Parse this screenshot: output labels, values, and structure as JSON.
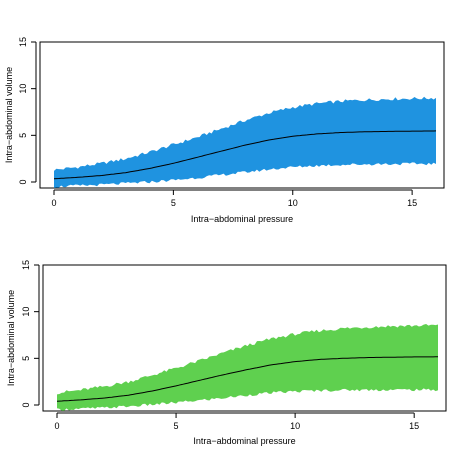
{
  "chart_data": [
    {
      "type": "area",
      "xlabel": "Intra−abdominal pressure",
      "ylabel": "Intra−abdominal volume",
      "xlim": [
        0,
        16
      ],
      "ylim": [
        0,
        15
      ],
      "xticks": [
        0,
        5,
        10,
        15
      ],
      "yticks": [
        0,
        5,
        10,
        15
      ],
      "grid": false,
      "band_color": "#1f93e0",
      "line_color": "#000000",
      "x": [
        0.0,
        1.0,
        2.0,
        3.0,
        4.0,
        5.0,
        6.0,
        7.0,
        8.0,
        9.0,
        10.0,
        11.0,
        12.0,
        13.0,
        14.0,
        15.0,
        16.0
      ],
      "mean": [
        0.35,
        0.5,
        0.7,
        1.0,
        1.45,
        2.0,
        2.65,
        3.3,
        3.95,
        4.5,
        4.9,
        5.15,
        5.3,
        5.38,
        5.42,
        5.45,
        5.47
      ],
      "upper": [
        1.3,
        1.6,
        2.0,
        2.5,
        3.2,
        4.0,
        4.8,
        5.7,
        6.6,
        7.4,
        8.0,
        8.4,
        8.65,
        8.8,
        8.9,
        8.95,
        9.0
      ],
      "lower": [
        -0.5,
        -0.4,
        -0.3,
        -0.15,
        0.0,
        0.2,
        0.45,
        0.75,
        1.05,
        1.35,
        1.6,
        1.75,
        1.85,
        1.9,
        1.93,
        1.95,
        1.95
      ]
    },
    {
      "type": "area",
      "xlabel": "Intra−abdominal pressure",
      "ylabel": "Intra−abdominal volume",
      "xlim": [
        0,
        16
      ],
      "ylim": [
        0,
        15
      ],
      "xticks": [
        0,
        5,
        10,
        15
      ],
      "yticks": [
        0,
        5,
        10,
        15
      ],
      "grid": false,
      "band_color": "#5fd04f",
      "line_color": "#000000",
      "x": [
        0.0,
        1.0,
        2.0,
        3.0,
        4.0,
        5.0,
        6.0,
        7.0,
        8.0,
        9.0,
        10.0,
        11.0,
        12.0,
        13.0,
        14.0,
        15.0,
        16.0
      ],
      "mean": [
        0.4,
        0.55,
        0.75,
        1.05,
        1.5,
        2.05,
        2.65,
        3.25,
        3.8,
        4.3,
        4.65,
        4.88,
        5.0,
        5.08,
        5.12,
        5.15,
        5.16
      ],
      "upper": [
        1.3,
        1.6,
        2.0,
        2.5,
        3.2,
        3.95,
        4.75,
        5.6,
        6.4,
        7.1,
        7.6,
        7.95,
        8.2,
        8.35,
        8.45,
        8.5,
        8.55
      ],
      "lower": [
        -0.5,
        -0.4,
        -0.3,
        -0.15,
        0.05,
        0.25,
        0.5,
        0.75,
        1.05,
        1.3,
        1.45,
        1.55,
        1.6,
        1.62,
        1.63,
        1.63,
        1.63
      ]
    }
  ]
}
